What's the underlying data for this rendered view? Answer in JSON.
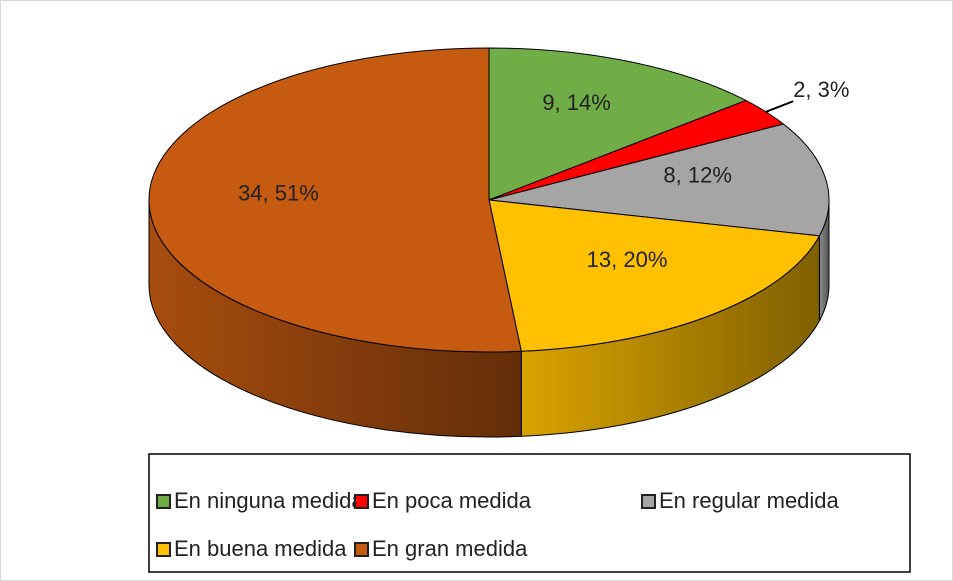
{
  "chart_data": {
    "type": "pie",
    "categories": [
      "En ninguna medida",
      "En poca medida",
      "En regular medida",
      "En buena medida",
      "En gran medida"
    ],
    "values": [
      9,
      2,
      8,
      13,
      34
    ],
    "value_labels": [
      "9, 14%",
      "2, 3%",
      "8, 12%",
      "13, 20%",
      "34, 51%"
    ],
    "colors": [
      "#70ad47",
      "#ff0000",
      "#a5a5a5",
      "#ffc000",
      "#c55a11"
    ],
    "legend": "bottom"
  }
}
